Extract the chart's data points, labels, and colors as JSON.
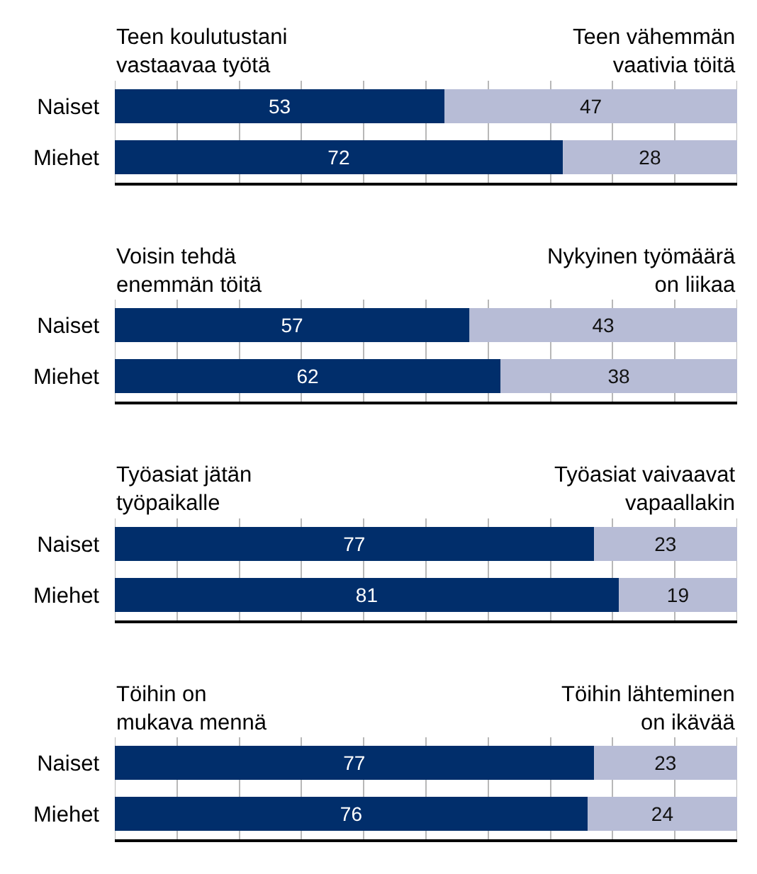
{
  "chart_data": [
    {
      "type": "bar",
      "orientation": "horizontal",
      "stacked": true,
      "categories": [
        "Naiset",
        "Miehet"
      ],
      "series": [
        {
          "name": "Teen koulutustani vastaavaa työtä",
          "color": "#012e6b",
          "values": [
            53,
            72
          ]
        },
        {
          "name": "Teen vähemmän vaativia töitä",
          "color": "#b7bcd6",
          "values": [
            47,
            28
          ]
        }
      ],
      "xlim": [
        0,
        100
      ],
      "xticks": [
        {
          "value": 0,
          "label": null
        },
        {
          "value": 10,
          "label": null
        },
        {
          "value": 20,
          "label": null
        },
        {
          "value": 30,
          "label": null
        },
        {
          "value": 40,
          "label": null
        },
        {
          "value": 50,
          "label": null
        },
        {
          "value": 60,
          "label": null
        },
        {
          "value": 70,
          "label": null
        },
        {
          "value": 80,
          "label": null
        },
        {
          "value": 90,
          "label": null
        },
        {
          "value": 100,
          "label": null
        }
      ],
      "grid": "x",
      "tick_labels": "y",
      "data_labels": true
    },
    {
      "type": "bar",
      "orientation": "horizontal",
      "stacked": true,
      "categories": [
        "Naiset",
        "Miehet"
      ],
      "series": [
        {
          "name": "Voisin tehdä enemmän töitä",
          "color": "#012e6b",
          "values": [
            57,
            62
          ]
        },
        {
          "name": "Nykyinen työmäärä on liikaa",
          "color": "#b7bcd6",
          "values": [
            43,
            38
          ]
        }
      ],
      "xlim": [
        0,
        100
      ],
      "xticks": [
        {
          "value": 0,
          "label": null
        },
        {
          "value": 10,
          "label": null
        },
        {
          "value": 20,
          "label": null
        },
        {
          "value": 30,
          "label": null
        },
        {
          "value": 40,
          "label": null
        },
        {
          "value": 50,
          "label": null
        },
        {
          "value": 60,
          "label": null
        },
        {
          "value": 70,
          "label": null
        },
        {
          "value": 80,
          "label": null
        },
        {
          "value": 90,
          "label": null
        },
        {
          "value": 100,
          "label": null
        }
      ],
      "grid": "x",
      "tick_labels": "y",
      "data_labels": true
    },
    {
      "type": "bar",
      "orientation": "horizontal",
      "stacked": true,
      "categories": [
        "Naiset",
        "Miehet"
      ],
      "series": [
        {
          "name": "Työasiat jätän työpaikalle",
          "color": "#012e6b",
          "values": [
            77,
            81
          ]
        },
        {
          "name": "Työasiat vaivaavat vapaallakin",
          "color": "#b7bcd6",
          "values": [
            23,
            19
          ]
        }
      ],
      "xlim": [
        0,
        100
      ],
      "xticks": [
        {
          "value": 0,
          "label": null
        },
        {
          "value": 10,
          "label": null
        },
        {
          "value": 20,
          "label": null
        },
        {
          "value": 30,
          "label": null
        },
        {
          "value": 40,
          "label": null
        },
        {
          "value": 50,
          "label": null
        },
        {
          "value": 60,
          "label": null
        },
        {
          "value": 70,
          "label": null
        },
        {
          "value": 80,
          "label": null
        },
        {
          "value": 90,
          "label": null
        },
        {
          "value": 100,
          "label": null
        }
      ],
      "grid": "x",
      "tick_labels": "y",
      "data_labels": true
    },
    {
      "type": "bar",
      "orientation": "horizontal",
      "stacked": true,
      "categories": [
        "Naiset",
        "Miehet"
      ],
      "series": [
        {
          "name": "Töihin on mukava mennä",
          "color": "#012e6b",
          "values": [
            77,
            76
          ]
        },
        {
          "name": "Töihin lähteminen on ikävää",
          "color": "#b7bcd6",
          "values": [
            23,
            24
          ]
        }
      ],
      "xlim": [
        0,
        100
      ],
      "xticks": [
        {
          "value": 0,
          "label": null
        },
        {
          "value": 10,
          "label": null
        },
        {
          "value": 20,
          "label": null
        },
        {
          "value": 30,
          "label": null
        },
        {
          "value": 40,
          "label": null
        },
        {
          "value": 50,
          "label": null
        },
        {
          "value": 60,
          "label": null
        },
        {
          "value": 70,
          "label": null
        },
        {
          "value": 80,
          "label": null
        },
        {
          "value": 90,
          "label": null
        },
        {
          "value": 100,
          "label": null
        }
      ],
      "grid": "x",
      "tick_labels": "y",
      "data_labels": true
    }
  ]
}
